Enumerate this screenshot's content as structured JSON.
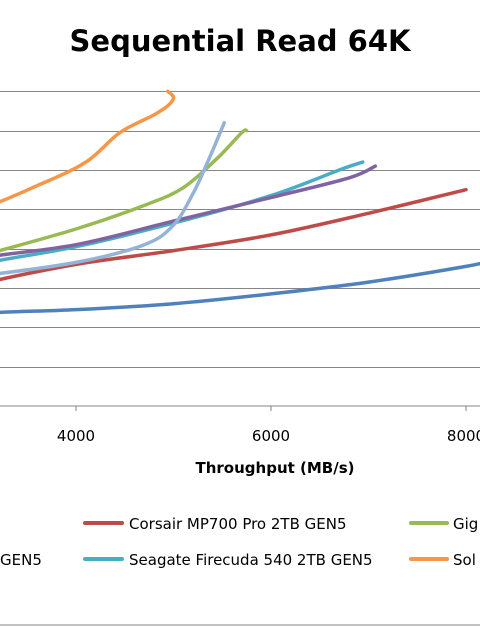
{
  "chart_data": {
    "type": "line",
    "title": "Sequential Read 64K",
    "xlabel": "Throughput  (MB/s)",
    "ylabel": "",
    "xlim": [
      2000,
      8300
    ],
    "ylim": [
      0,
      9
    ],
    "x_ticks": [
      {
        "value": 4000,
        "label": "4000"
      },
      {
        "value": 6000,
        "label": "6000"
      },
      {
        "value": 8000,
        "label": "8000"
      }
    ],
    "y_gridlines": [
      1,
      2,
      3,
      4,
      5,
      6,
      7,
      8
    ],
    "grid": true,
    "legend_position": "bottom",
    "series": [
      {
        "name": "Corsair MP700 Pro 2TB GEN5",
        "color": "#be4b48",
        "points": [
          [
            2000,
            2.5
          ],
          [
            3000,
            3.1
          ],
          [
            4000,
            3.6
          ],
          [
            5000,
            3.95
          ],
          [
            6000,
            4.35
          ],
          [
            7000,
            4.9
          ],
          [
            8000,
            5.5
          ]
        ]
      },
      {
        "name": "Gig",
        "color": "#98b954",
        "points": [
          [
            2000,
            3.1
          ],
          [
            3000,
            3.8
          ],
          [
            4000,
            4.5
          ],
          [
            4700,
            5.1
          ],
          [
            5100,
            5.55
          ],
          [
            5450,
            6.3
          ],
          [
            5700,
            6.95
          ],
          [
            5750,
            7.0
          ]
        ]
      },
      {
        "name": "Seagate Firecuda 540 2TB GEN5",
        "color": "#4bacc6",
        "points": [
          [
            2000,
            3.0
          ],
          [
            3000,
            3.6
          ],
          [
            4000,
            4.05
          ],
          [
            5000,
            4.65
          ],
          [
            6000,
            5.35
          ],
          [
            6700,
            6.0
          ],
          [
            6940,
            6.2
          ]
        ]
      },
      {
        "name": "Sol",
        "color": "#f79646",
        "points": [
          [
            2000,
            4.3
          ],
          [
            3000,
            5.0
          ],
          [
            3600,
            5.6
          ],
          [
            4100,
            6.2
          ],
          [
            4450,
            6.95
          ],
          [
            4800,
            7.4
          ],
          [
            4950,
            7.65
          ],
          [
            5000,
            7.85
          ],
          [
            4940,
            8.0
          ]
        ]
      },
      {
        "name": "",
        "color": "#8064a2",
        "points": [
          [
            2000,
            3.2
          ],
          [
            3000,
            3.75
          ],
          [
            4000,
            4.1
          ],
          [
            5000,
            4.7
          ],
          [
            6000,
            5.3
          ],
          [
            6800,
            5.8
          ],
          [
            7070,
            6.1
          ]
        ]
      },
      {
        "name": "",
        "color": "#95b3d7",
        "points": [
          [
            2000,
            3.0
          ],
          [
            3000,
            3.3
          ],
          [
            4000,
            3.65
          ],
          [
            4700,
            4.1
          ],
          [
            5000,
            4.6
          ],
          [
            5200,
            5.4
          ],
          [
            5350,
            6.2
          ],
          [
            5470,
            6.9
          ],
          [
            5520,
            7.2
          ]
        ]
      },
      {
        "name": "",
        "color": "#4f81bd",
        "points": [
          [
            2000,
            2.1
          ],
          [
            3000,
            2.35
          ],
          [
            4000,
            2.45
          ],
          [
            5000,
            2.6
          ],
          [
            6000,
            2.85
          ],
          [
            7000,
            3.15
          ],
          [
            8000,
            3.55
          ],
          [
            8300,
            3.72
          ]
        ]
      }
    ],
    "legend": [
      {
        "label": "Corsair MP700 Pro 2TB GEN5",
        "color": "#be4b48"
      },
      {
        "label": "Gig",
        "color": "#98b954"
      },
      {
        "label": "GEN5",
        "color": ""
      },
      {
        "label": "Seagate Firecuda 540 2TB GEN5",
        "color": "#4bacc6"
      },
      {
        "label": "Sol",
        "color": "#f79646"
      }
    ]
  }
}
